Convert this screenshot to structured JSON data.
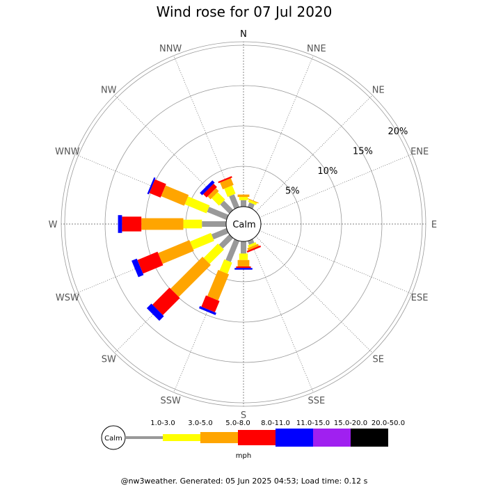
{
  "chart_data": {
    "type": "wind-rose",
    "title": "Wind rose for 07 Jul 2020",
    "directions": [
      "N",
      "NNE",
      "NE",
      "ENE",
      "E",
      "ESE",
      "SE",
      "SSE",
      "S",
      "SSW",
      "SW",
      "WSW",
      "W",
      "WNW",
      "NW",
      "NNW"
    ],
    "ring_labels": [
      "5%",
      "10%",
      "15%",
      "20%"
    ],
    "ring_values": [
      5,
      10,
      15,
      20
    ],
    "calm_label": "Calm",
    "speed_unit": "mph",
    "speed_bins": [
      {
        "label": "1.0-3.0",
        "color": "#999999"
      },
      {
        "label": "3.0-5.0",
        "color": "#ffff00"
      },
      {
        "label": "5.0-8.0",
        "color": "#ffa500"
      },
      {
        "label": "8.0-11.0",
        "color": "#ff0000"
      },
      {
        "label": "11.0-15.0",
        "color": "#0000ff"
      },
      {
        "label": "15.0-20.0",
        "color": "#a020f0"
      },
      {
        "label": "20.0-50.0",
        "color": "#000000"
      }
    ],
    "frequencies_percent": {
      "N": [
        0.8,
        0.4,
        0.3,
        0,
        0,
        0,
        0
      ],
      "NNE": [
        0.6,
        0.3,
        0.1,
        0,
        0,
        0,
        0
      ],
      "NE": [
        0,
        0,
        0,
        0,
        0,
        0,
        0
      ],
      "ENE": [
        0,
        0,
        0,
        0,
        0,
        0,
        0
      ],
      "E": [
        0,
        0,
        0,
        0,
        0,
        0,
        0
      ],
      "ESE": [
        0,
        0,
        0,
        0,
        0,
        0,
        0
      ],
      "SE": [
        0,
        0,
        0,
        0,
        0,
        0,
        0
      ],
      "SSE": [
        0.5,
        0.3,
        0.3,
        0.2,
        0,
        0,
        0
      ],
      "S": [
        1.5,
        0.8,
        0.8,
        0.2,
        0.2,
        0,
        0
      ],
      "SSW": [
        2.8,
        1.5,
        3.5,
        1.5,
        0.3,
        0,
        0
      ],
      "SW": [
        1.8,
        2.5,
        5.6,
        3.0,
        0.8,
        0,
        0
      ],
      "WSW": [
        2.0,
        2.8,
        4.2,
        2.7,
        0.7,
        0,
        0
      ],
      "W": [
        3.0,
        2.3,
        5.2,
        2.4,
        0.5,
        0,
        0
      ],
      "WNW": [
        2.6,
        2.9,
        3.1,
        1.5,
        0.2,
        0,
        0
      ],
      "NW": [
        1.6,
        1.3,
        0.5,
        0.6,
        0.4,
        0,
        0
      ],
      "NNW": [
        1.7,
        1.1,
        0.9,
        0.2,
        0,
        0,
        0
      ]
    }
  },
  "footer": "@nw3weather. Generated: 05 Jun 2025 04:53; Load time: 0.12 s"
}
